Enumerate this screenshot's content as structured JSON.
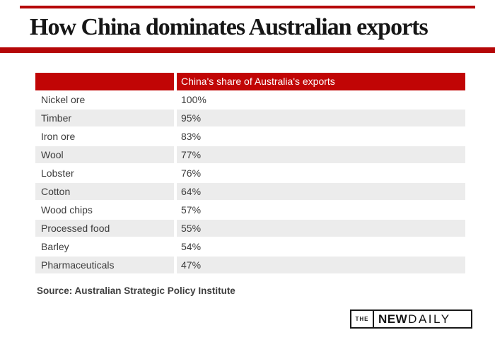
{
  "title": "How China dominates Australian exports",
  "table": {
    "header": {
      "label_column": "",
      "value_column": "China's share of Australia's exports"
    },
    "rows": [
      {
        "label": "Nickel ore",
        "value": "100%"
      },
      {
        "label": "Timber",
        "value": "95%"
      },
      {
        "label": "Iron ore",
        "value": "83%"
      },
      {
        "label": "Wool",
        "value": "77%"
      },
      {
        "label": "Lobster",
        "value": "76%"
      },
      {
        "label": "Cotton",
        "value": "64%"
      },
      {
        "label": "Wood chips",
        "value": "57%"
      },
      {
        "label": "Processed food",
        "value": "55%"
      },
      {
        "label": "Barley",
        "value": "54%"
      },
      {
        "label": "Pharmaceuticals",
        "value": "47%"
      }
    ]
  },
  "source": "Source: Australian Strategic Policy Institute",
  "logo": {
    "the": "THE",
    "new": "NEW",
    "daily": "DAILY"
  },
  "colors": {
    "accent_red_header": "#c10505",
    "accent_red_rule": "#b50708",
    "row_alt_gray": "#ececec",
    "body_text": "#3c3c3c"
  },
  "chart_data": {
    "type": "table",
    "title": "How China dominates Australian exports",
    "column_header": "China's share of Australia's exports",
    "categories": [
      "Nickel ore",
      "Timber",
      "Iron ore",
      "Wool",
      "Lobster",
      "Cotton",
      "Wood chips",
      "Processed food",
      "Barley",
      "Pharmaceuticals"
    ],
    "values": [
      100,
      95,
      83,
      77,
      76,
      64,
      57,
      55,
      54,
      47
    ],
    "value_unit": "percent",
    "source": "Source: Australian Strategic Policy Institute",
    "legend_position": "none",
    "grid": false
  }
}
